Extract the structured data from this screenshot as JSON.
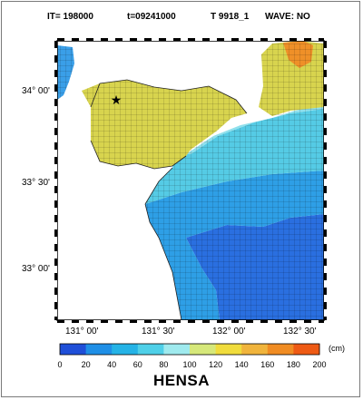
{
  "header": {
    "iteration": "IT=  198000",
    "time": "t=09241000",
    "case": "T 9918_1",
    "wave": "WAVE: NO"
  },
  "map": {
    "lat_labels": [
      "34° 00'",
      "33° 30'",
      "33° 00'"
    ],
    "lon_labels": [
      "131° 00'",
      "131° 30'",
      "132° 00'",
      "132° 30'"
    ],
    "marker": "★",
    "icon": "star-marker-icon"
  },
  "colorbar": {
    "title": "HENSA",
    "unit": "(cm)",
    "ticks": [
      "0",
      "20",
      "40",
      "60",
      "80",
      "100",
      "120",
      "140",
      "160",
      "180",
      "200"
    ],
    "colors": [
      "#1f4fd8",
      "#1f8fe6",
      "#25b3e6",
      "#4fd0e8",
      "#9feaee",
      "#d6e87a",
      "#f0dc3c",
      "#f0b43c",
      "#f08c23",
      "#ee5a14"
    ]
  }
}
